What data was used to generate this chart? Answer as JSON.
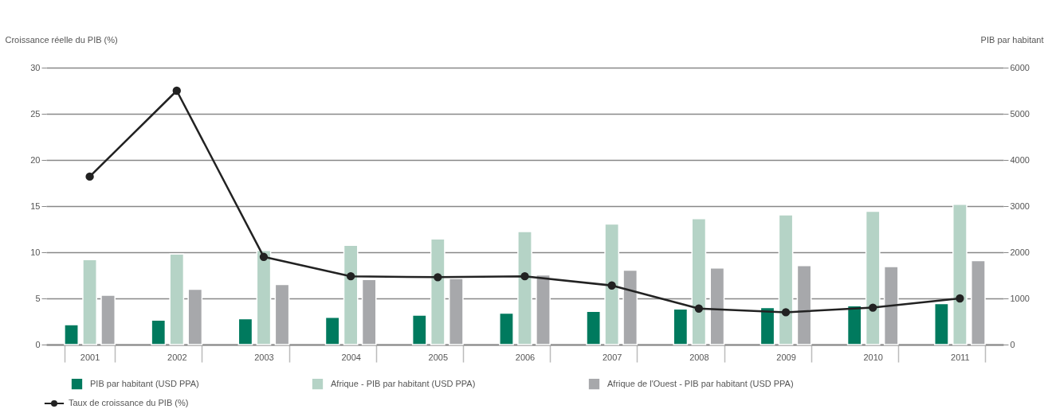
{
  "chart_data": {
    "type": "bar",
    "ylabel": "Croissance réelle du PIB (%)",
    "y2label": "PIB par habitant",
    "categories": [
      "2001",
      "2002",
      "2003",
      "2004",
      "2005",
      "2006",
      "2007",
      "2008",
      "2009",
      "2010",
      "2011"
    ],
    "series": [
      {
        "name": "PIB par habitant (USD PPA)",
        "axis": "y2",
        "color": "#007a5e",
        "values": [
          430,
          530,
          560,
          590,
          640,
          680,
          720,
          770,
          800,
          840,
          890
        ]
      },
      {
        "name": "Afrique - PIB par habitant (USD PPA)",
        "axis": "y2",
        "color": "#b5d3c6",
        "values": [
          1840,
          1960,
          2040,
          2150,
          2290,
          2450,
          2610,
          2730,
          2810,
          2890,
          3040
        ]
      },
      {
        "name": "Afrique de l'Ouest - PIB par habitant (USD PPA)",
        "axis": "y2",
        "color": "#a7a8ab",
        "values": [
          1070,
          1200,
          1300,
          1410,
          1430,
          1510,
          1610,
          1660,
          1710,
          1690,
          1820
        ]
      },
      {
        "name": "Taux de croissance du PIB (%)",
        "type": "line",
        "color": "#222222",
        "marker": "circle",
        "values": [
          18.2,
          27.5,
          9.5,
          7.4,
          7.3,
          7.4,
          6.4,
          3.9,
          3.5,
          4.0,
          5.0
        ]
      }
    ],
    "ylim": [
      0,
      30
    ],
    "yticks": [
      0,
      5,
      10,
      15,
      20,
      25,
      30
    ],
    "y2lim": [
      0,
      6000
    ],
    "y2ticks": [
      0,
      1000,
      2000,
      3000,
      4000,
      5000,
      6000
    ],
    "grid": "y",
    "legend": "bottom"
  }
}
